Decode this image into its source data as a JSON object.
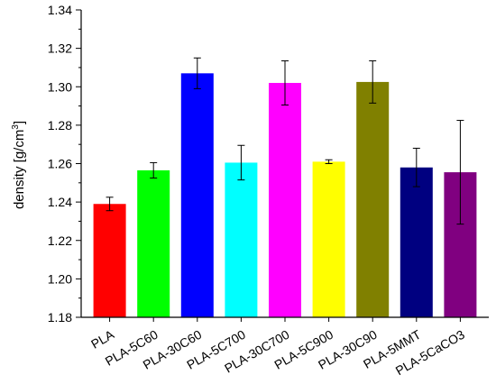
{
  "chart_data": {
    "type": "bar",
    "title": "",
    "xlabel": "",
    "ylabel": "density [g/cm³]",
    "ylabel_parts": {
      "base": "density [g/cm",
      "sup": "3",
      "end": "]"
    },
    "ylim": [
      1.18,
      1.34
    ],
    "yticks": [
      "1.18",
      "1.20",
      "1.22",
      "1.24",
      "1.26",
      "1.28",
      "1.30",
      "1.32",
      "1.34"
    ],
    "ytick_values": [
      1.18,
      1.2,
      1.22,
      1.24,
      1.26,
      1.28,
      1.3,
      1.32,
      1.34
    ],
    "grid": false,
    "categories": [
      "PLA",
      "PLA-5C60",
      "PLA-30C60",
      "PLA-5C700",
      "PLA-30C700",
      "PLA-5C900",
      "PLA-30C90",
      "PLA-5MMT",
      "PLA-5CaCO3"
    ],
    "values": [
      1.239,
      1.2565,
      1.307,
      1.2605,
      1.302,
      1.261,
      1.3025,
      1.258,
      1.2555
    ],
    "errors": [
      0.0035,
      0.004,
      0.008,
      0.009,
      0.0115,
      0.001,
      0.011,
      0.01,
      0.027
    ],
    "colors": [
      "#ff0000",
      "#00ff00",
      "#0000ff",
      "#00ffff",
      "#ff00ff",
      "#ffff00",
      "#808000",
      "#000080",
      "#800080"
    ]
  }
}
